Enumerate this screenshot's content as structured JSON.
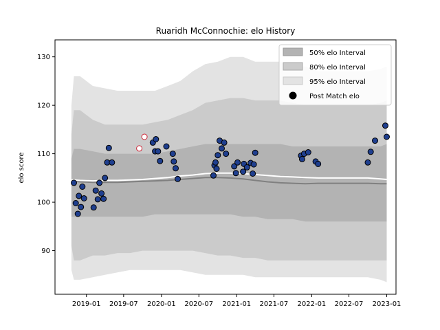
{
  "chart_data": {
    "type": "scatter",
    "title": "Ruaridh McConnochie: elo History",
    "xlabel": "",
    "ylabel": "elo score",
    "xlim": [
      "2018-08-01",
      "2023-02-15"
    ],
    "ylim": [
      81,
      133.5
    ],
    "x_ticks": [
      "2019-01",
      "2019-07",
      "2020-01",
      "2020-07",
      "2021-01",
      "2021-07",
      "2022-01",
      "2022-07",
      "2023-01"
    ],
    "y_ticks": [
      90,
      100,
      110,
      120,
      130
    ],
    "grid": false,
    "legend_position": "top-right",
    "legend": [
      "50% elo Interval",
      "80% elo Interval",
      "95% elo Interval",
      "Post Match elo"
    ],
    "colors": {
      "band_50": "#b3b3b3",
      "band_80": "#cbcbcb",
      "band_95": "#e3e3e3",
      "median_line": "#808080",
      "mean_line": "#ffffff",
      "point_fill": "#1f3f8f",
      "point_edge": "#000000",
      "highlight_fill": "#ffffff",
      "highlight_edge": "#cc2233"
    },
    "bands": {
      "x": [
        "2018-10-20",
        "2018-11-01",
        "2018-12-01",
        "2019-02-01",
        "2019-04-01",
        "2019-06-01",
        "2019-08-01",
        "2019-10-01",
        "2019-12-01",
        "2020-02-01",
        "2020-04-01",
        "2020-06-01",
        "2020-08-01",
        "2020-10-01",
        "2020-12-01",
        "2021-02-01",
        "2021-04-01",
        "2021-06-01",
        "2021-08-01",
        "2021-10-01",
        "2021-12-01",
        "2022-02-01",
        "2022-04-01",
        "2022-06-01",
        "2022-08-01",
        "2022-10-01",
        "2022-12-01",
        "2023-01-01"
      ],
      "p95_high": [
        120,
        126,
        126,
        124,
        123.5,
        123,
        123,
        123,
        123,
        124,
        125,
        127,
        128.5,
        129,
        130,
        130,
        129,
        129,
        129,
        128,
        128,
        127,
        127,
        127,
        127,
        127,
        127.5,
        128
      ],
      "p80_high": [
        114,
        119,
        119,
        117,
        116,
        116,
        116,
        116,
        116.5,
        117,
        118,
        119,
        120.5,
        121,
        121.5,
        121.5,
        121,
        121,
        121,
        120.5,
        120,
        120,
        120,
        120,
        120,
        120,
        120.5,
        121
      ],
      "p50_high": [
        109,
        111,
        111,
        110.5,
        110,
        110,
        110,
        110,
        110,
        110.5,
        111,
        111.5,
        112,
        112,
        112,
        112,
        112,
        112,
        112,
        111.5,
        111.5,
        111.5,
        111.5,
        111.5,
        111.5,
        111.5,
        111.5,
        112
      ],
      "median": [
        104.3,
        104.3,
        104.2,
        104.1,
        104.1,
        104.1,
        104.2,
        104.3,
        104.4,
        104.5,
        104.7,
        104.9,
        105.1,
        105.1,
        105.0,
        104.8,
        104.5,
        104.2,
        104.0,
        103.9,
        103.8,
        103.9,
        103.9,
        103.9,
        103.9,
        103.9,
        103.8,
        103.8
      ],
      "mean": [
        104.6,
        104.6,
        104.5,
        104.4,
        104.5,
        104.5,
        104.6,
        104.7,
        104.9,
        105.1,
        105.4,
        105.6,
        105.9,
        106.0,
        106.0,
        105.9,
        105.7,
        105.5,
        105.3,
        105.2,
        105.1,
        105.0,
        105.0,
        105.0,
        105.0,
        105.0,
        104.8,
        104.7
      ],
      "p50_low": [
        97,
        97,
        97,
        97,
        97,
        97,
        97,
        97,
        97.5,
        97.5,
        97.5,
        97.5,
        97.5,
        97.5,
        97.5,
        97,
        97,
        96.5,
        96.5,
        96.5,
        96,
        96,
        96,
        96,
        96,
        96,
        96,
        96
      ],
      "p80_low": [
        91,
        88,
        88,
        89,
        89,
        89.5,
        89.5,
        90,
        90,
        90,
        90,
        90,
        89.5,
        89,
        89,
        88.5,
        88.5,
        88,
        88,
        88,
        88,
        88,
        88,
        88,
        88,
        88,
        88,
        88
      ],
      "p95_low": [
        86,
        84,
        84,
        84.5,
        85,
        85.5,
        86,
        86,
        86,
        86,
        86,
        85.5,
        85,
        85,
        85,
        85,
        84.5,
        84.5,
        84.5,
        84.5,
        84.5,
        84.5,
        84.5,
        84.5,
        84.5,
        84.5,
        84,
        83.5
      ]
    },
    "points": [
      {
        "x": "2018-11-01",
        "y": 104.0
      },
      {
        "x": "2018-11-10",
        "y": 99.8
      },
      {
        "x": "2018-11-20",
        "y": 97.6
      },
      {
        "x": "2018-11-25",
        "y": 101.3
      },
      {
        "x": "2018-12-05",
        "y": 99.0
      },
      {
        "x": "2018-12-12",
        "y": 103.2
      },
      {
        "x": "2018-12-20",
        "y": 100.8
      },
      {
        "x": "2019-02-05",
        "y": 98.9
      },
      {
        "x": "2019-02-15",
        "y": 102.4
      },
      {
        "x": "2019-02-25",
        "y": 100.6
      },
      {
        "x": "2019-03-05",
        "y": 104.0
      },
      {
        "x": "2019-03-15",
        "y": 101.8
      },
      {
        "x": "2019-03-25",
        "y": 100.7
      },
      {
        "x": "2019-04-01",
        "y": 105.0
      },
      {
        "x": "2019-04-12",
        "y": 108.2
      },
      {
        "x": "2019-04-20",
        "y": 111.2
      },
      {
        "x": "2019-05-05",
        "y": 108.2
      },
      {
        "x": "2019-09-15",
        "y": 111.1,
        "highlight": true
      },
      {
        "x": "2019-10-10",
        "y": 113.5,
        "highlight": true
      },
      {
        "x": "2019-11-20",
        "y": 112.3
      },
      {
        "x": "2019-12-01",
        "y": 110.5
      },
      {
        "x": "2019-12-05",
        "y": 113.0
      },
      {
        "x": "2019-12-15",
        "y": 110.5
      },
      {
        "x": "2019-12-25",
        "y": 108.5
      },
      {
        "x": "2020-01-25",
        "y": 111.5
      },
      {
        "x": "2020-02-25",
        "y": 110.0
      },
      {
        "x": "2020-03-01",
        "y": 108.4
      },
      {
        "x": "2020-03-10",
        "y": 107.0
      },
      {
        "x": "2020-03-20",
        "y": 104.8
      },
      {
        "x": "2020-09-10",
        "y": 105.5
      },
      {
        "x": "2020-09-15",
        "y": 107.6
      },
      {
        "x": "2020-09-20",
        "y": 108.2
      },
      {
        "x": "2020-09-25",
        "y": 106.9
      },
      {
        "x": "2020-10-01",
        "y": 109.7
      },
      {
        "x": "2020-10-10",
        "y": 112.7
      },
      {
        "x": "2020-10-20",
        "y": 111.1
      },
      {
        "x": "2020-11-01",
        "y": 112.3
      },
      {
        "x": "2020-11-10",
        "y": 110.0
      },
      {
        "x": "2020-12-20",
        "y": 107.4
      },
      {
        "x": "2020-12-28",
        "y": 106.0
      },
      {
        "x": "2021-01-05",
        "y": 108.2
      },
      {
        "x": "2021-02-01",
        "y": 106.3
      },
      {
        "x": "2021-02-05",
        "y": 107.9
      },
      {
        "x": "2021-02-20",
        "y": 107.2
      },
      {
        "x": "2021-03-10",
        "y": 108.1
      },
      {
        "x": "2021-03-20",
        "y": 105.9
      },
      {
        "x": "2021-03-25",
        "y": 107.8
      },
      {
        "x": "2021-04-01",
        "y": 110.2
      },
      {
        "x": "2021-11-10",
        "y": 109.6
      },
      {
        "x": "2021-11-15",
        "y": 108.9
      },
      {
        "x": "2021-11-25",
        "y": 110.0
      },
      {
        "x": "2021-12-15",
        "y": 110.3
      },
      {
        "x": "2022-01-20",
        "y": 108.4
      },
      {
        "x": "2022-02-01",
        "y": 107.9
      },
      {
        "x": "2022-10-01",
        "y": 108.2
      },
      {
        "x": "2022-10-15",
        "y": 110.4
      },
      {
        "x": "2022-11-05",
        "y": 112.7
      },
      {
        "x": "2022-12-25",
        "y": 115.8
      },
      {
        "x": "2023-01-01",
        "y": 113.5
      }
    ]
  }
}
